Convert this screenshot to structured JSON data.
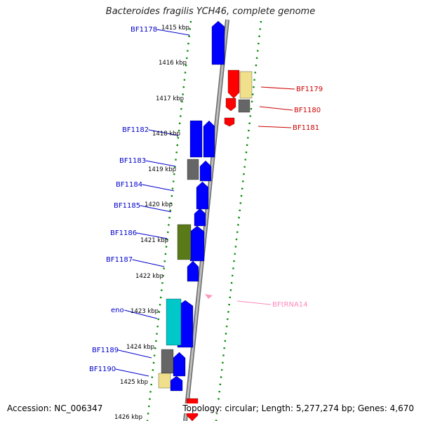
{
  "title": "Bacteroides fragilis YCH46, complete genome",
  "footer": {
    "accession": "Accession: NC_006347",
    "summary": "Topology: circular; Length: 5,277,274 bp; Genes: 4,670"
  },
  "scale_labels": [
    "1415 kbp",
    "1416 kbp",
    "1417 kbp",
    "1418 kbp",
    "1419 kbp",
    "1420 kbp",
    "1421 kbp",
    "1422 kbp",
    "1423 kbp",
    "1424 kbp",
    "1425 kbp",
    "1426 kbp"
  ],
  "genes_left": [
    {
      "label": "BF1178",
      "color": "#0000cc"
    },
    {
      "label": "BF1182",
      "color": "#0000cc"
    },
    {
      "label": "BF1183",
      "color": "#0000cc"
    },
    {
      "label": "BF1184",
      "color": "#0000cc"
    },
    {
      "label": "BF1185",
      "color": "#0000cc"
    },
    {
      "label": "BF1186",
      "color": "#0000cc"
    },
    {
      "label": "BF1187",
      "color": "#0000cc"
    },
    {
      "label": "eno",
      "color": "#0000cc"
    },
    {
      "label": "BF1189",
      "color": "#0000cc"
    },
    {
      "label": "BF1190",
      "color": "#0000cc"
    }
  ],
  "genes_right": [
    {
      "label": "BF1179",
      "color": "#cc0000"
    },
    {
      "label": "BF1180",
      "color": "#cc0000"
    },
    {
      "label": "BF1181",
      "color": "#cc0000"
    },
    {
      "label": "BFtRNA14",
      "color": "#ff88bb"
    }
  ],
  "colors": {
    "forward_gene": "#0000ff",
    "reverse_gene": "#ff0000",
    "cog_gray": "#666666",
    "cog_yellow": "#f0e08c",
    "cog_olive": "#5a7a1a",
    "cog_cyan": "#00c8c8",
    "trna": "#ff99bb",
    "backbone": "#999999",
    "dots": "#008800"
  }
}
